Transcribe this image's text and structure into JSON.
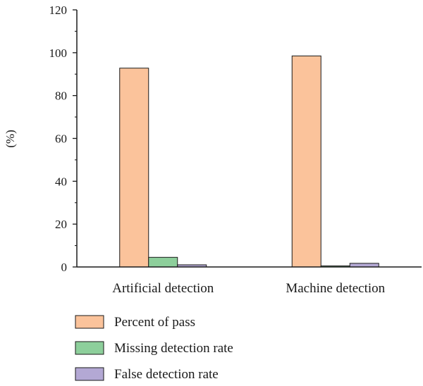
{
  "chart_data": {
    "type": "bar",
    "title": "",
    "xlabel": "",
    "ylabel": "(%)",
    "ylim": [
      0,
      120
    ],
    "yticks": [
      0,
      20,
      40,
      60,
      80,
      100,
      120
    ],
    "categories": [
      "Artificial detection",
      "Machine detection"
    ],
    "series": [
      {
        "name": "Percent of pass",
        "values": [
          92.8,
          98.5
        ],
        "color": "#fbc39b"
      },
      {
        "name": "Missing detection rate",
        "values": [
          4.5,
          0.5
        ],
        "color": "#8dcf9b"
      },
      {
        "name": "False detection rate",
        "values": [
          1.0,
          1.7
        ],
        "color": "#b3a8d4"
      }
    ],
    "grid": false,
    "legend": "bottom-left"
  }
}
